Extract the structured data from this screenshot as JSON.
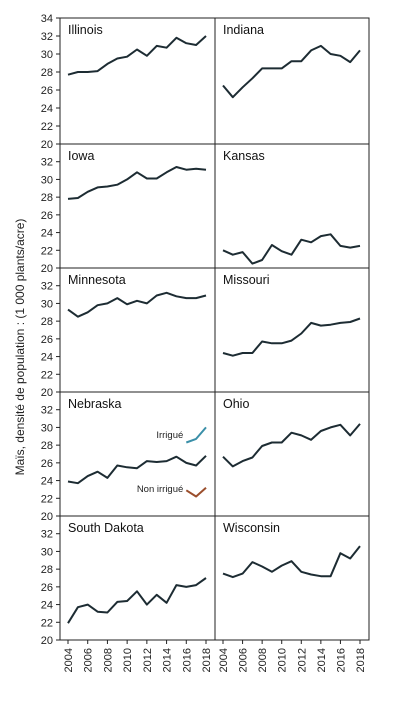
{
  "chart_data": {
    "type": "line",
    "ylabel": "Maïs, densité de population : (1 000 plants/acre)",
    "ylim": [
      20,
      34
    ],
    "yticks": [
      20,
      22,
      24,
      26,
      28,
      30,
      32,
      34
    ],
    "xlim": [
      2004,
      2018
    ],
    "xticks": [
      2004,
      2006,
      2008,
      2010,
      2012,
      2014,
      2016,
      2018
    ],
    "grid": false,
    "line_color": "#1d2c33",
    "panels": [
      {
        "title": "Illinois",
        "series": [
          {
            "x": [
              2004,
              2005,
              2006,
              2007,
              2008,
              2009,
              2010,
              2011,
              2012,
              2013,
              2014,
              2015,
              2016,
              2017,
              2018
            ],
            "y": [
              27.7,
              28.0,
              28.0,
              28.1,
              28.9,
              29.5,
              29.7,
              30.5,
              29.8,
              30.9,
              30.7,
              31.8,
              31.2,
              31.0,
              32.0
            ]
          }
        ]
      },
      {
        "title": "Indiana",
        "series": [
          {
            "x": [
              2004,
              2005,
              2006,
              2007,
              2008,
              2009,
              2010,
              2011,
              2012,
              2013,
              2014,
              2015,
              2016,
              2017,
              2018
            ],
            "y": [
              26.5,
              25.2,
              26.3,
              27.3,
              28.4,
              28.4,
              28.4,
              29.2,
              29.2,
              30.4,
              30.9,
              30.0,
              29.8,
              29.1,
              30.4
            ]
          }
        ]
      },
      {
        "title": "Iowa",
        "series": [
          {
            "x": [
              2004,
              2005,
              2006,
              2007,
              2008,
              2009,
              2010,
              2011,
              2012,
              2013,
              2014,
              2015,
              2016,
              2017,
              2018
            ],
            "y": [
              27.8,
              27.9,
              28.6,
              29.1,
              29.2,
              29.4,
              30.0,
              30.8,
              30.1,
              30.1,
              30.8,
              31.4,
              31.1,
              31.2,
              31.1
            ]
          }
        ]
      },
      {
        "title": "Kansas",
        "series": [
          {
            "x": [
              2004,
              2005,
              2006,
              2007,
              2008,
              2009,
              2010,
              2011,
              2012,
              2013,
              2014,
              2015,
              2016,
              2017,
              2018
            ],
            "y": [
              22.0,
              21.5,
              21.8,
              20.5,
              20.9,
              22.6,
              21.9,
              21.5,
              23.2,
              22.9,
              23.6,
              23.8,
              22.5,
              22.3,
              22.5
            ]
          }
        ]
      },
      {
        "title": "Minnesota",
        "series": [
          {
            "x": [
              2004,
              2005,
              2006,
              2007,
              2008,
              2009,
              2010,
              2011,
              2012,
              2013,
              2014,
              2015,
              2016,
              2017,
              2018
            ],
            "y": [
              29.3,
              28.5,
              29.0,
              29.8,
              30.0,
              30.6,
              29.9,
              30.3,
              30.0,
              30.9,
              31.2,
              30.8,
              30.6,
              30.6,
              30.9
            ]
          }
        ]
      },
      {
        "title": "Missouri",
        "series": [
          {
            "x": [
              2004,
              2005,
              2006,
              2007,
              2008,
              2009,
              2010,
              2011,
              2012,
              2013,
              2014,
              2015,
              2016,
              2017,
              2018
            ],
            "y": [
              24.4,
              24.1,
              24.4,
              24.4,
              25.7,
              25.5,
              25.5,
              25.8,
              26.6,
              27.8,
              27.5,
              27.6,
              27.8,
              27.9,
              28.3
            ]
          }
        ]
      },
      {
        "title": "Nebraska",
        "series": [
          {
            "x": [
              2004,
              2005,
              2006,
              2007,
              2008,
              2009,
              2010,
              2011,
              2012,
              2013,
              2014,
              2015,
              2016,
              2017,
              2018
            ],
            "y": [
              23.9,
              23.7,
              24.5,
              25.0,
              24.3,
              25.7,
              25.5,
              25.4,
              26.2,
              26.1,
              26.2,
              26.7,
              26.0,
              25.7,
              26.8
            ]
          },
          {
            "name": "Irrigué",
            "color": "#3a8fa8",
            "x": [
              2016,
              2017,
              2018
            ],
            "y": [
              28.3,
              28.7,
              30.0
            ]
          },
          {
            "name": "Non irrigué",
            "color": "#9b4e2c",
            "x": [
              2016,
              2017,
              2018
            ],
            "y": [
              22.9,
              22.2,
              23.2
            ]
          }
        ]
      },
      {
        "title": "Ohio",
        "series": [
          {
            "x": [
              2004,
              2005,
              2006,
              2007,
              2008,
              2009,
              2010,
              2011,
              2012,
              2013,
              2014,
              2015,
              2016,
              2017,
              2018
            ],
            "y": [
              26.7,
              25.6,
              26.2,
              26.6,
              27.9,
              28.3,
              28.3,
              29.4,
              29.1,
              28.6,
              29.6,
              30.0,
              30.3,
              29.1,
              30.4
            ]
          }
        ]
      },
      {
        "title": "South Dakota",
        "series": [
          {
            "x": [
              2004,
              2005,
              2006,
              2007,
              2008,
              2009,
              2010,
              2011,
              2012,
              2013,
              2014,
              2015,
              2016,
              2017,
              2018
            ],
            "y": [
              21.9,
              23.7,
              24.0,
              23.2,
              23.1,
              24.3,
              24.4,
              25.5,
              24.0,
              25.1,
              24.2,
              26.2,
              26.0,
              26.2,
              27.0
            ]
          }
        ]
      },
      {
        "title": "Wisconsin",
        "series": [
          {
            "x": [
              2004,
              2005,
              2006,
              2007,
              2008,
              2009,
              2010,
              2011,
              2012,
              2013,
              2014,
              2015,
              2016,
              2017,
              2018
            ],
            "y": [
              27.5,
              27.1,
              27.5,
              28.8,
              28.3,
              27.7,
              28.4,
              28.9,
              27.7,
              27.4,
              27.2,
              27.2,
              29.8,
              29.2,
              30.6
            ]
          }
        ]
      }
    ]
  }
}
